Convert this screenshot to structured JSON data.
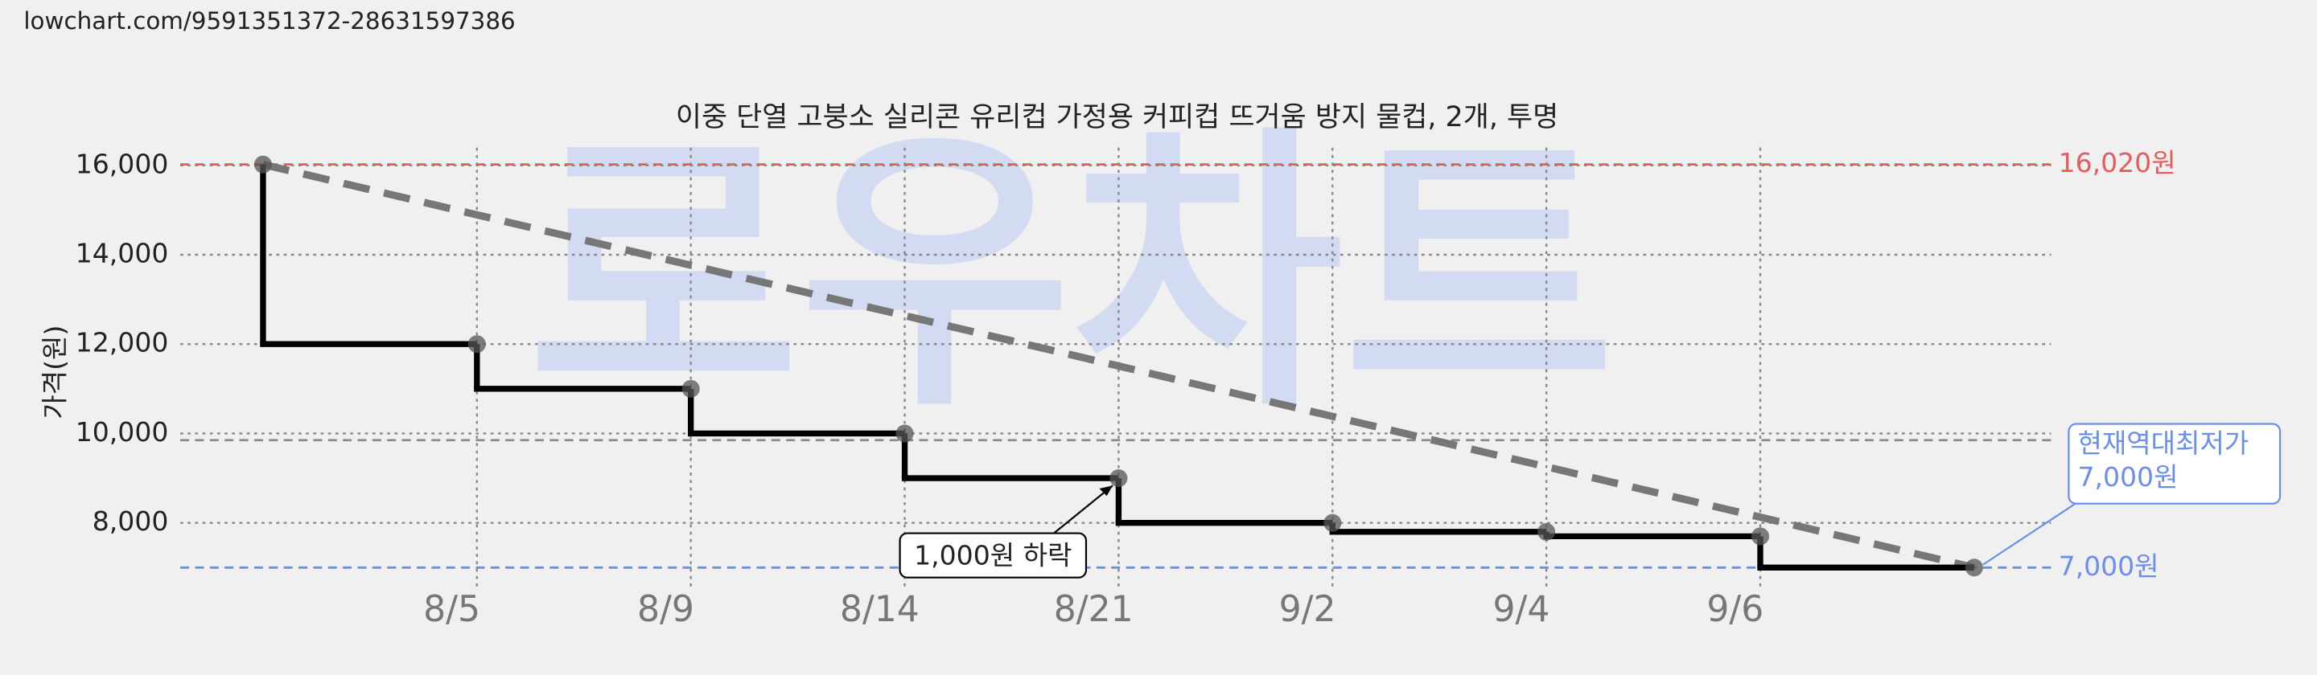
{
  "url": "lowchart.com/9591351372-28631597386",
  "watermark": "로우차트",
  "chart_data": {
    "type": "step",
    "title": "이중 단열 고붕소 실리콘 유리컵 가정용 커피컵 뜨거움 방지 물컵, 2개, 투명",
    "y_label": "가격(원)",
    "categories": [
      null,
      "8/5",
      "8/9",
      "8/14",
      "8/21",
      "9/2",
      "9/4",
      "9/6",
      null
    ],
    "series": [
      {
        "name": "가격",
        "color": "#000000",
        "values": [
          16020,
          12000,
          11000,
          10000,
          9000,
          8000,
          7800,
          7700,
          7000
        ]
      }
    ],
    "ylim": [
      6480,
      16560
    ],
    "yticks": [
      {
        "value": 8000,
        "label": "8,000"
      },
      {
        "value": 10000,
        "label": "10,000"
      },
      {
        "value": 12000,
        "label": "12,000"
      },
      {
        "value": 14000,
        "label": "14,000"
      },
      {
        "value": 16000,
        "label": "16,000"
      }
    ],
    "grid": true,
    "reference_lines": [
      {
        "value": 16020,
        "label": "16,020원",
        "color": "#e35d5d"
      },
      {
        "value": 7000,
        "label": "7,000원",
        "color": "#6a8eea"
      },
      {
        "value": 9850,
        "color": "#8a8a8a"
      }
    ],
    "annotations": [
      {
        "text": "1,000원 하락"
      },
      {
        "text": [
          "현재역대최저가",
          "7,000원"
        ]
      }
    ]
  }
}
